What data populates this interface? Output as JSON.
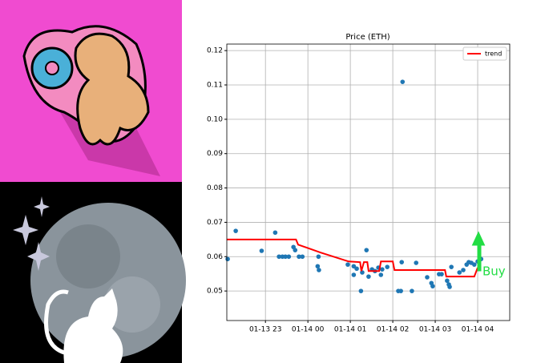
{
  "chart_data": {
    "type": "scatter",
    "title": "Price (ETH)",
    "color": "#1f77b4",
    "x": [
      22.11,
      22.3,
      22.91,
      23.23,
      23.32,
      23.4,
      23.47,
      23.55,
      23.66,
      23.7,
      23.79,
      23.87,
      24.23,
      24.26,
      24.25,
      24.94,
      25.08,
      25.08,
      25.15,
      25.25,
      25.28,
      25.38,
      25.43,
      25.51,
      25.58,
      25.66,
      25.72,
      25.75,
      25.87,
      26.13,
      26.19,
      26.23,
      26.21,
      26.45,
      26.55,
      26.81,
      26.91,
      26.94,
      27.09,
      27.15,
      27.28,
      27.32,
      27.34,
      27.38,
      27.57,
      27.66,
      27.74,
      27.79,
      27.85,
      27.92,
      28.0,
      28.08
    ],
    "values": [
      0.0593,
      0.0675,
      0.0617,
      0.067,
      0.06,
      0.06,
      0.06,
      0.06,
      0.0628,
      0.0619,
      0.06,
      0.06,
      0.0572,
      0.0561,
      0.06,
      0.0577,
      0.0572,
      0.0547,
      0.0565,
      0.05,
      0.0554,
      0.0619,
      0.0542,
      0.0563,
      0.0558,
      0.0568,
      0.0547,
      0.0563,
      0.057,
      0.05,
      0.05,
      0.1109,
      0.0584,
      0.05,
      0.0582,
      0.054,
      0.0523,
      0.0514,
      0.0549,
      0.0549,
      0.053,
      0.0519,
      0.0512,
      0.057,
      0.0554,
      0.0561,
      0.0577,
      0.0584,
      0.0582,
      0.0577,
      0.0586,
      0.0593
    ],
    "series": [
      {
        "name": "trend",
        "type": "line",
        "color": "#ff0000",
        "x": [
          22.09,
          23.72,
          23.77,
          24.3,
          24.96,
          25.23,
          25.26,
          25.32,
          25.4,
          25.43,
          25.68,
          25.72,
          26.0,
          26.04,
          27.23,
          27.26,
          27.92,
          28.0
        ],
        "values": [
          0.065,
          0.065,
          0.0635,
          0.0612,
          0.0586,
          0.0584,
          0.0558,
          0.0584,
          0.0584,
          0.0558,
          0.0558,
          0.0586,
          0.0586,
          0.0561,
          0.0561,
          0.0542,
          0.0542,
          0.0568
        ]
      }
    ],
    "xlim": [
      22.09,
      28.755
    ],
    "xticks": [
      {
        "value": 23,
        "label": "01-13 23"
      },
      {
        "value": 24,
        "label": "01-14 00"
      },
      {
        "value": 25,
        "label": "01-14 01"
      },
      {
        "value": 26,
        "label": "01-14 02"
      },
      {
        "value": 27,
        "label": "01-14 03"
      },
      {
        "value": 28,
        "label": "01-14 04"
      }
    ],
    "ylim": [
      0.0414,
      0.1219
    ],
    "yticks": [
      0.05,
      0.06,
      0.07,
      0.08,
      0.09,
      {
        "value": 0.1,
        "label": "0.10"
      },
      0.11,
      0.12
    ],
    "grid": true,
    "legend": "upper right",
    "annotation": "Buy"
  }
}
